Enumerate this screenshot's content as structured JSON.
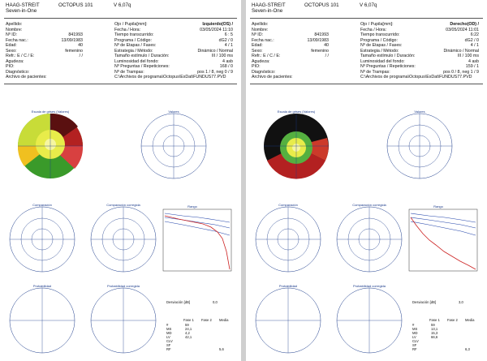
{
  "header": {
    "brand": "HAAG-STREIT",
    "subbrand": "Seven-in-One",
    "model": "OCTOPUS 101",
    "version": "V 6,07q"
  },
  "labels": {
    "apellido": "Apellido:",
    "nombre": "Nombre:",
    "id": "Nº ID:",
    "fecha_nac": "Fecha nac.:",
    "edad": "Edad:",
    "sexo": "Sexo:",
    "refr": "Refr.: E / C / E:",
    "agudeza": "Agudeza:",
    "pio": "PIO:",
    "diagnostico": "Diagnóstico:",
    "archivo": "Archivo de pacientes:",
    "ojo": "Ojo / Pupila[mm]:",
    "fecha_hora": "Fecha / Hora:",
    "tiempo": "Tiempo transcurrido:",
    "programa": "Programa / Código:",
    "etapas": "Nº de Etapas / Fases:",
    "estrategia": "Estrategia / Método:",
    "estimulo": "Tamaño estímulo / Duración:",
    "luminosidad": "Luminosidad del fondo:",
    "preguntas": "Nº Preguntas / Repeticiones:",
    "trampas": "Nº de Trampas:"
  },
  "chart_labels": {
    "escala": "Escala de grises (Valores)",
    "valores": "Valores",
    "comparacion": "Comparación",
    "comparacion_corregida": "Comparación corregida",
    "probabilidad": "Probabilidad",
    "probabilidad_corregida": "Probabilidad corregida",
    "deg": "30°",
    "rango": "Rango",
    "desviacion": "Desviación [dB]",
    "fase1": "Fase 1",
    "fase2": "Fase 2",
    "media": "Media",
    "stat_labels": [
      "#",
      "MS",
      "MD",
      "LV",
      "CLV",
      "SF",
      "RF"
    ],
    "legend": [
      "P<5",
      "P<2",
      "P<1",
      "P<0.5"
    ],
    "pct_labels": [
      "5%",
      "normal",
      "95%"
    ]
  },
  "left": {
    "id": "841993",
    "fecha_nac": "13/09/1983",
    "edad": "40",
    "sexo": "femenino",
    "refr": "/ /",
    "ojo": "Izquierdo(OS) / ",
    "fecha_hora": "03/05/2024  11:10",
    "tiempo": "6 : 5",
    "programa": "dG2 / 0",
    "etapas": "4 / 1",
    "estrategia": "Dinámico / Normal",
    "estimulo": "III / 100 ms",
    "luminosidad": "4 asb",
    "preguntas": "168 / 0",
    "trampas": "pos 1 / 8, neg 0 / 9",
    "archivo": "C:\\Archivos de programa\\Octopus\\ExDat\\FUNDUS77.PVD",
    "desviacion_val": "0,0",
    "stats": {
      "f1": [
        "59",
        "24,1",
        "4,2",
        "42,1",
        "",
        ""
      ],
      "rf": "5,6"
    }
  },
  "right": {
    "id": "841993",
    "fecha_nac": "13/09/1983",
    "edad": "40",
    "sexo": "femenino",
    "refr": "/ /",
    "ojo": "Derecho(OD) / ",
    "fecha_hora": "03/05/2024  11:01",
    "tiempo": "6:22",
    "programa": "dG2 / 0",
    "etapas": "4 / 1",
    "estrategia": "Dinámico / Normal",
    "estimulo": "III / 100 ms",
    "luminosidad": "4 asb",
    "preguntas": "159 / 1",
    "trampas": "pos 0 / 8, neg 1 / 9",
    "archivo": "C:\\Archivos de programa\\Octopus\\ExDat\\FUNDUS77.PVD",
    "desviacion_val": "3,0",
    "stats": {
      "f1": [
        "59",
        "13,1",
        "15,3",
        "66,6",
        "",
        ""
      ],
      "rf": "6,3"
    }
  },
  "colors": {
    "accent": "#1a3a8a",
    "curve_red": "#cc2222",
    "curve_blue": "#2244aa"
  }
}
